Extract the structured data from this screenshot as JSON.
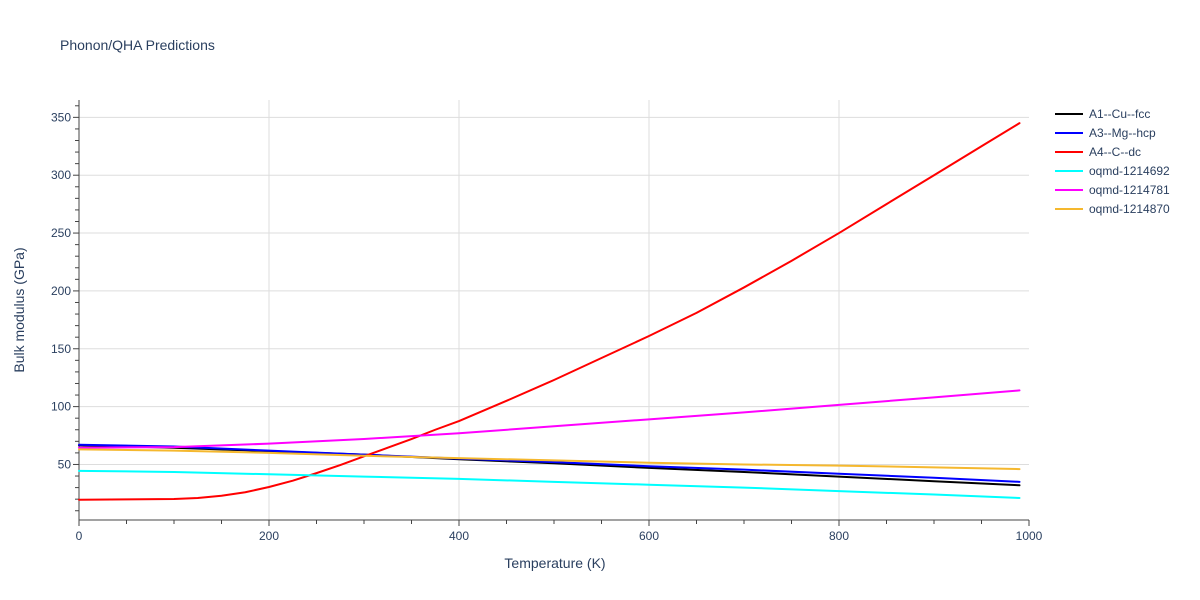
{
  "chart_data": {
    "type": "line",
    "title": "Phonon/QHA Predictions",
    "xlabel": "Temperature (K)",
    "ylabel": "Bulk modulus (GPa)",
    "xlim": [
      0,
      1000
    ],
    "ylim": [
      2,
      365
    ],
    "x_ticks": [
      0,
      200,
      400,
      600,
      800,
      1000
    ],
    "x_tick_labels": [
      "0",
      "200",
      "400",
      "600",
      "800",
      "1000"
    ],
    "y_ticks": [
      50,
      100,
      150,
      200,
      250,
      300,
      350
    ],
    "y_tick_labels": [
      "50",
      "100",
      "150",
      "200",
      "250",
      "300",
      "350"
    ],
    "grid": true,
    "legend_position": "right",
    "series": [
      {
        "name": "A1--Cu--fcc",
        "color": "#000000",
        "x": [
          0,
          100,
          200,
          300,
          400,
          500,
          600,
          700,
          800,
          900,
          990
        ],
        "values": [
          66.5,
          64.5,
          61.5,
          58.5,
          54.5,
          51,
          47,
          43.5,
          39.5,
          35.5,
          32
        ]
      },
      {
        "name": "A3--Mg--hcp",
        "color": "#0000ff",
        "x": [
          0,
          100,
          200,
          300,
          400,
          500,
          600,
          700,
          800,
          900,
          990
        ],
        "values": [
          67,
          65.5,
          62,
          58.5,
          55,
          52,
          48.5,
          45.5,
          42,
          38.5,
          35
        ]
      },
      {
        "name": "A4--C--dc",
        "color": "#ff0000",
        "x": [
          0,
          50,
          100,
          125,
          150,
          175,
          200,
          225,
          250,
          275,
          300,
          325,
          350,
          375,
          400,
          450,
          500,
          550,
          600,
          650,
          700,
          750,
          800,
          850,
          900,
          950,
          990
        ],
        "values": [
          19.5,
          19.8,
          20.2,
          21,
          23,
          26,
          30.5,
          36,
          42.5,
          49.5,
          57,
          64.5,
          72,
          80,
          87.5,
          105,
          123,
          142,
          161,
          181,
          203,
          226,
          250,
          275,
          300,
          325,
          345
        ]
      },
      {
        "name": "oqmd-1214692",
        "color": "#00ffff",
        "x": [
          0,
          100,
          200,
          300,
          400,
          500,
          600,
          700,
          800,
          900,
          990
        ],
        "values": [
          44.5,
          43.5,
          41.5,
          39.5,
          37.5,
          35,
          32.5,
          30,
          27,
          24,
          21
        ]
      },
      {
        "name": "oqmd-1214781",
        "color": "#ff00ff",
        "x": [
          0,
          100,
          200,
          300,
          400,
          500,
          600,
          700,
          800,
          900,
          990
        ],
        "values": [
          64.5,
          65,
          68,
          72,
          77,
          83,
          89,
          95,
          101.5,
          108,
          114
        ]
      },
      {
        "name": "oqmd-1214870",
        "color": "#f5b82e",
        "x": [
          0,
          100,
          200,
          300,
          400,
          500,
          600,
          700,
          800,
          900,
          990
        ],
        "values": [
          63,
          62,
          60,
          57.5,
          55.5,
          53.5,
          51.5,
          50,
          49,
          47.5,
          46
        ]
      }
    ]
  }
}
